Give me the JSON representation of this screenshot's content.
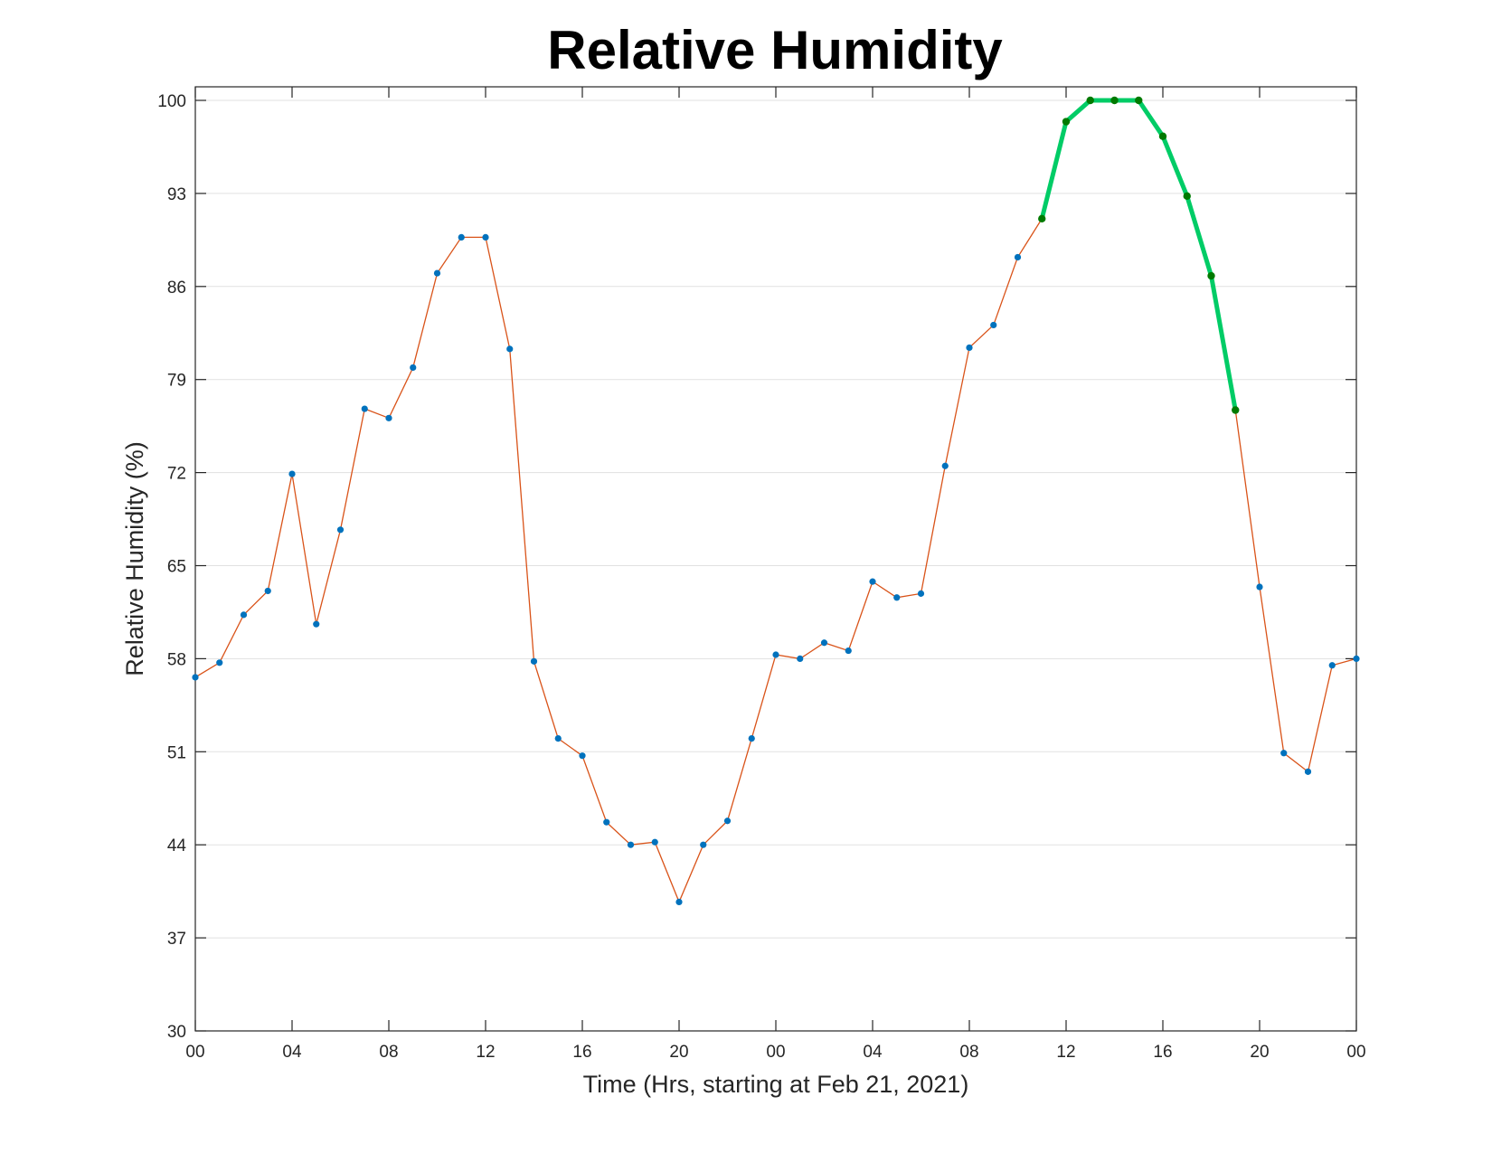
{
  "chart_data": {
    "type": "line",
    "title": "Relative Humidity",
    "xlabel": "Time (Hrs, starting at Feb 21, 2021)",
    "ylabel": "Relative Humidity (%)",
    "ylim": [
      30,
      100
    ],
    "xlim": [
      0,
      48
    ],
    "grid": "horizontal",
    "x_tick_values": [
      0,
      4,
      8,
      12,
      16,
      20,
      24,
      28,
      32,
      36,
      40,
      44,
      48
    ],
    "x_tick_labels": [
      "00",
      "04",
      "08",
      "12",
      "16",
      "20",
      "00",
      "04",
      "08",
      "12",
      "16",
      "20",
      "00"
    ],
    "y_ticks": [
      30,
      37,
      44,
      51,
      58,
      65,
      72,
      79,
      86,
      93,
      100
    ],
    "series": [
      {
        "x": [
          0,
          1,
          2,
          3,
          4,
          5,
          6,
          7,
          8,
          9,
          10,
          11,
          12,
          13,
          14,
          15,
          16,
          17,
          18,
          19,
          20,
          21,
          22,
          23,
          24,
          25,
          26,
          27,
          28,
          29,
          30,
          31,
          32,
          33,
          34,
          35,
          36,
          37,
          38,
          39,
          40,
          41,
          42,
          43,
          44,
          45,
          46,
          47,
          48
        ],
        "values": [
          56.6,
          57.7,
          61.3,
          63.1,
          71.9,
          60.6,
          67.7,
          76.8,
          76.1,
          79.9,
          87.0,
          89.7,
          89.7,
          81.3,
          57.8,
          52.0,
          50.7,
          45.7,
          44.0,
          44.2,
          39.7,
          44.0,
          45.8,
          52.0,
          58.3,
          58.0,
          59.2,
          58.6,
          63.8,
          62.6,
          62.9,
          72.5,
          81.4,
          83.1,
          88.2,
          91.1,
          98.4,
          100,
          100,
          100,
          97.3,
          92.8,
          86.8,
          76.7,
          63.4,
          50.9,
          49.5,
          57.5,
          58.0
        ],
        "line_color": "#D95319",
        "marker_color": "#0072BD"
      }
    ],
    "highlight": {
      "x": [
        35,
        36,
        37,
        38,
        39,
        40,
        41,
        42,
        43
      ],
      "values": [
        91.1,
        98.4,
        100,
        100,
        100,
        97.3,
        92.8,
        86.8,
        76.7
      ],
      "line_color": "#00CC66",
      "marker_color": "#007A00"
    }
  }
}
